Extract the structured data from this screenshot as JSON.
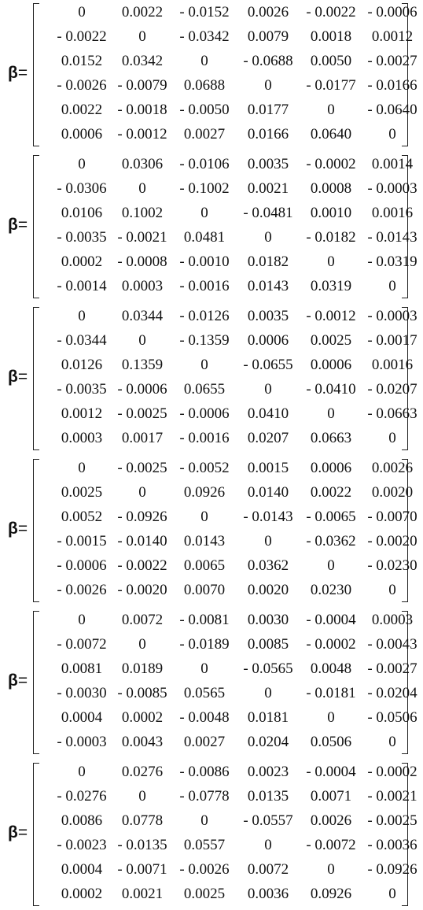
{
  "symbol": "β",
  "equals": "=",
  "matrices": [
    {
      "rows": [
        [
          "0",
          "0.0022",
          "- 0.0152",
          "0.0026",
          "- 0.0022",
          "- 0.0006"
        ],
        [
          "- 0.0022",
          "0",
          "- 0.0342",
          "0.0079",
          "0.0018",
          "0.0012"
        ],
        [
          "0.0152",
          "0.0342",
          "0",
          "- 0.0688",
          "0.0050",
          "- 0.0027"
        ],
        [
          "- 0.0026",
          "- 0.0079",
          "0.0688",
          "0",
          "- 0.0177",
          "- 0.0166"
        ],
        [
          "0.0022",
          "- 0.0018",
          "- 0.0050",
          "0.0177",
          "0",
          "- 0.0640"
        ],
        [
          "0.0006",
          "- 0.0012",
          "0.0027",
          "0.0166",
          "0.0640",
          "0"
        ]
      ]
    },
    {
      "rows": [
        [
          "0",
          "0.0306",
          "- 0.0106",
          "0.0035",
          "- 0.0002",
          "0.0014"
        ],
        [
          "- 0.0306",
          "0",
          "- 0.1002",
          "0.0021",
          "0.0008",
          "- 0.0003"
        ],
        [
          "0.0106",
          "0.1002",
          "0",
          "- 0.0481",
          "0.0010",
          "0.0016"
        ],
        [
          "- 0.0035",
          "- 0.0021",
          "0.0481",
          "0",
          "- 0.0182",
          "- 0.0143"
        ],
        [
          "0.0002",
          "- 0.0008",
          "- 0.0010",
          "0.0182",
          "0",
          "- 0.0319"
        ],
        [
          "- 0.0014",
          "0.0003",
          "- 0.0016",
          "0.0143",
          "0.0319",
          "0"
        ]
      ]
    },
    {
      "rows": [
        [
          "0",
          "0.0344",
          "- 0.0126",
          "0.0035",
          "- 0.0012",
          "- 0.0003"
        ],
        [
          "- 0.0344",
          "0",
          "- 0.1359",
          "0.0006",
          "0.0025",
          "- 0.0017"
        ],
        [
          "0.0126",
          "0.1359",
          "0",
          "- 0.0655",
          "0.0006",
          "0.0016"
        ],
        [
          "- 0.0035",
          "- 0.0006",
          "0.0655",
          "0",
          "- 0.0410",
          "- 0.0207"
        ],
        [
          "0.0012",
          "- 0.0025",
          "- 0.0006",
          "0.0410",
          "0",
          "- 0.0663"
        ],
        [
          "0.0003",
          "0.0017",
          "- 0.0016",
          "0.0207",
          "0.0663",
          "0"
        ]
      ]
    },
    {
      "rows": [
        [
          "0",
          "- 0.0025",
          "- 0.0052",
          "0.0015",
          "0.0006",
          "0.0026"
        ],
        [
          "0.0025",
          "0",
          "0.0926",
          "0.0140",
          "0.0022",
          "0.0020"
        ],
        [
          "0.0052",
          "- 0.0926",
          "0",
          "- 0.0143",
          "- 0.0065",
          "- 0.0070"
        ],
        [
          "- 0.0015",
          "- 0.0140",
          "0.0143",
          "0",
          "- 0.0362",
          "- 0.0020"
        ],
        [
          "- 0.0006",
          "- 0.0022",
          "0.0065",
          "0.0362",
          "0",
          "- 0.0230"
        ],
        [
          "- 0.0026",
          "- 0.0020",
          "0.0070",
          "0.0020",
          "0.0230",
          "0"
        ]
      ]
    },
    {
      "rows": [
        [
          "0",
          "0.0072",
          "- 0.0081",
          "0.0030",
          "- 0.0004",
          "0.0003"
        ],
        [
          "- 0.0072",
          "0",
          "- 0.0189",
          "0.0085",
          "- 0.0002",
          "- 0.0043"
        ],
        [
          "0.0081",
          "0.0189",
          "0",
          "- 0.0565",
          "0.0048",
          "- 0.0027"
        ],
        [
          "- 0.0030",
          "- 0.0085",
          "0.0565",
          "0",
          "- 0.0181",
          "- 0.0204"
        ],
        [
          "0.0004",
          "0.0002",
          "- 0.0048",
          "0.0181",
          "0",
          "- 0.0506"
        ],
        [
          "- 0.0003",
          "0.0043",
          "0.0027",
          "0.0204",
          "0.0506",
          "0"
        ]
      ]
    },
    {
      "rows": [
        [
          "0",
          "0.0276",
          "- 0.0086",
          "0.0023",
          "- 0.0004",
          "- 0.0002"
        ],
        [
          "- 0.0276",
          "0",
          "- 0.0778",
          "0.0135",
          "0.0071",
          "- 0.0021"
        ],
        [
          "0.0086",
          "0.0778",
          "0",
          "- 0.0557",
          "0.0026",
          "- 0.0025"
        ],
        [
          "- 0.0023",
          "- 0.0135",
          "0.0557",
          "0",
          "- 0.0072",
          "- 0.0036"
        ],
        [
          "0.0004",
          "- 0.0071",
          "- 0.0026",
          "0.0072",
          "0",
          "- 0.0926"
        ],
        [
          "0.0002",
          "0.0021",
          "0.0025",
          "0.0036",
          "0.0926",
          "0"
        ]
      ]
    }
  ]
}
